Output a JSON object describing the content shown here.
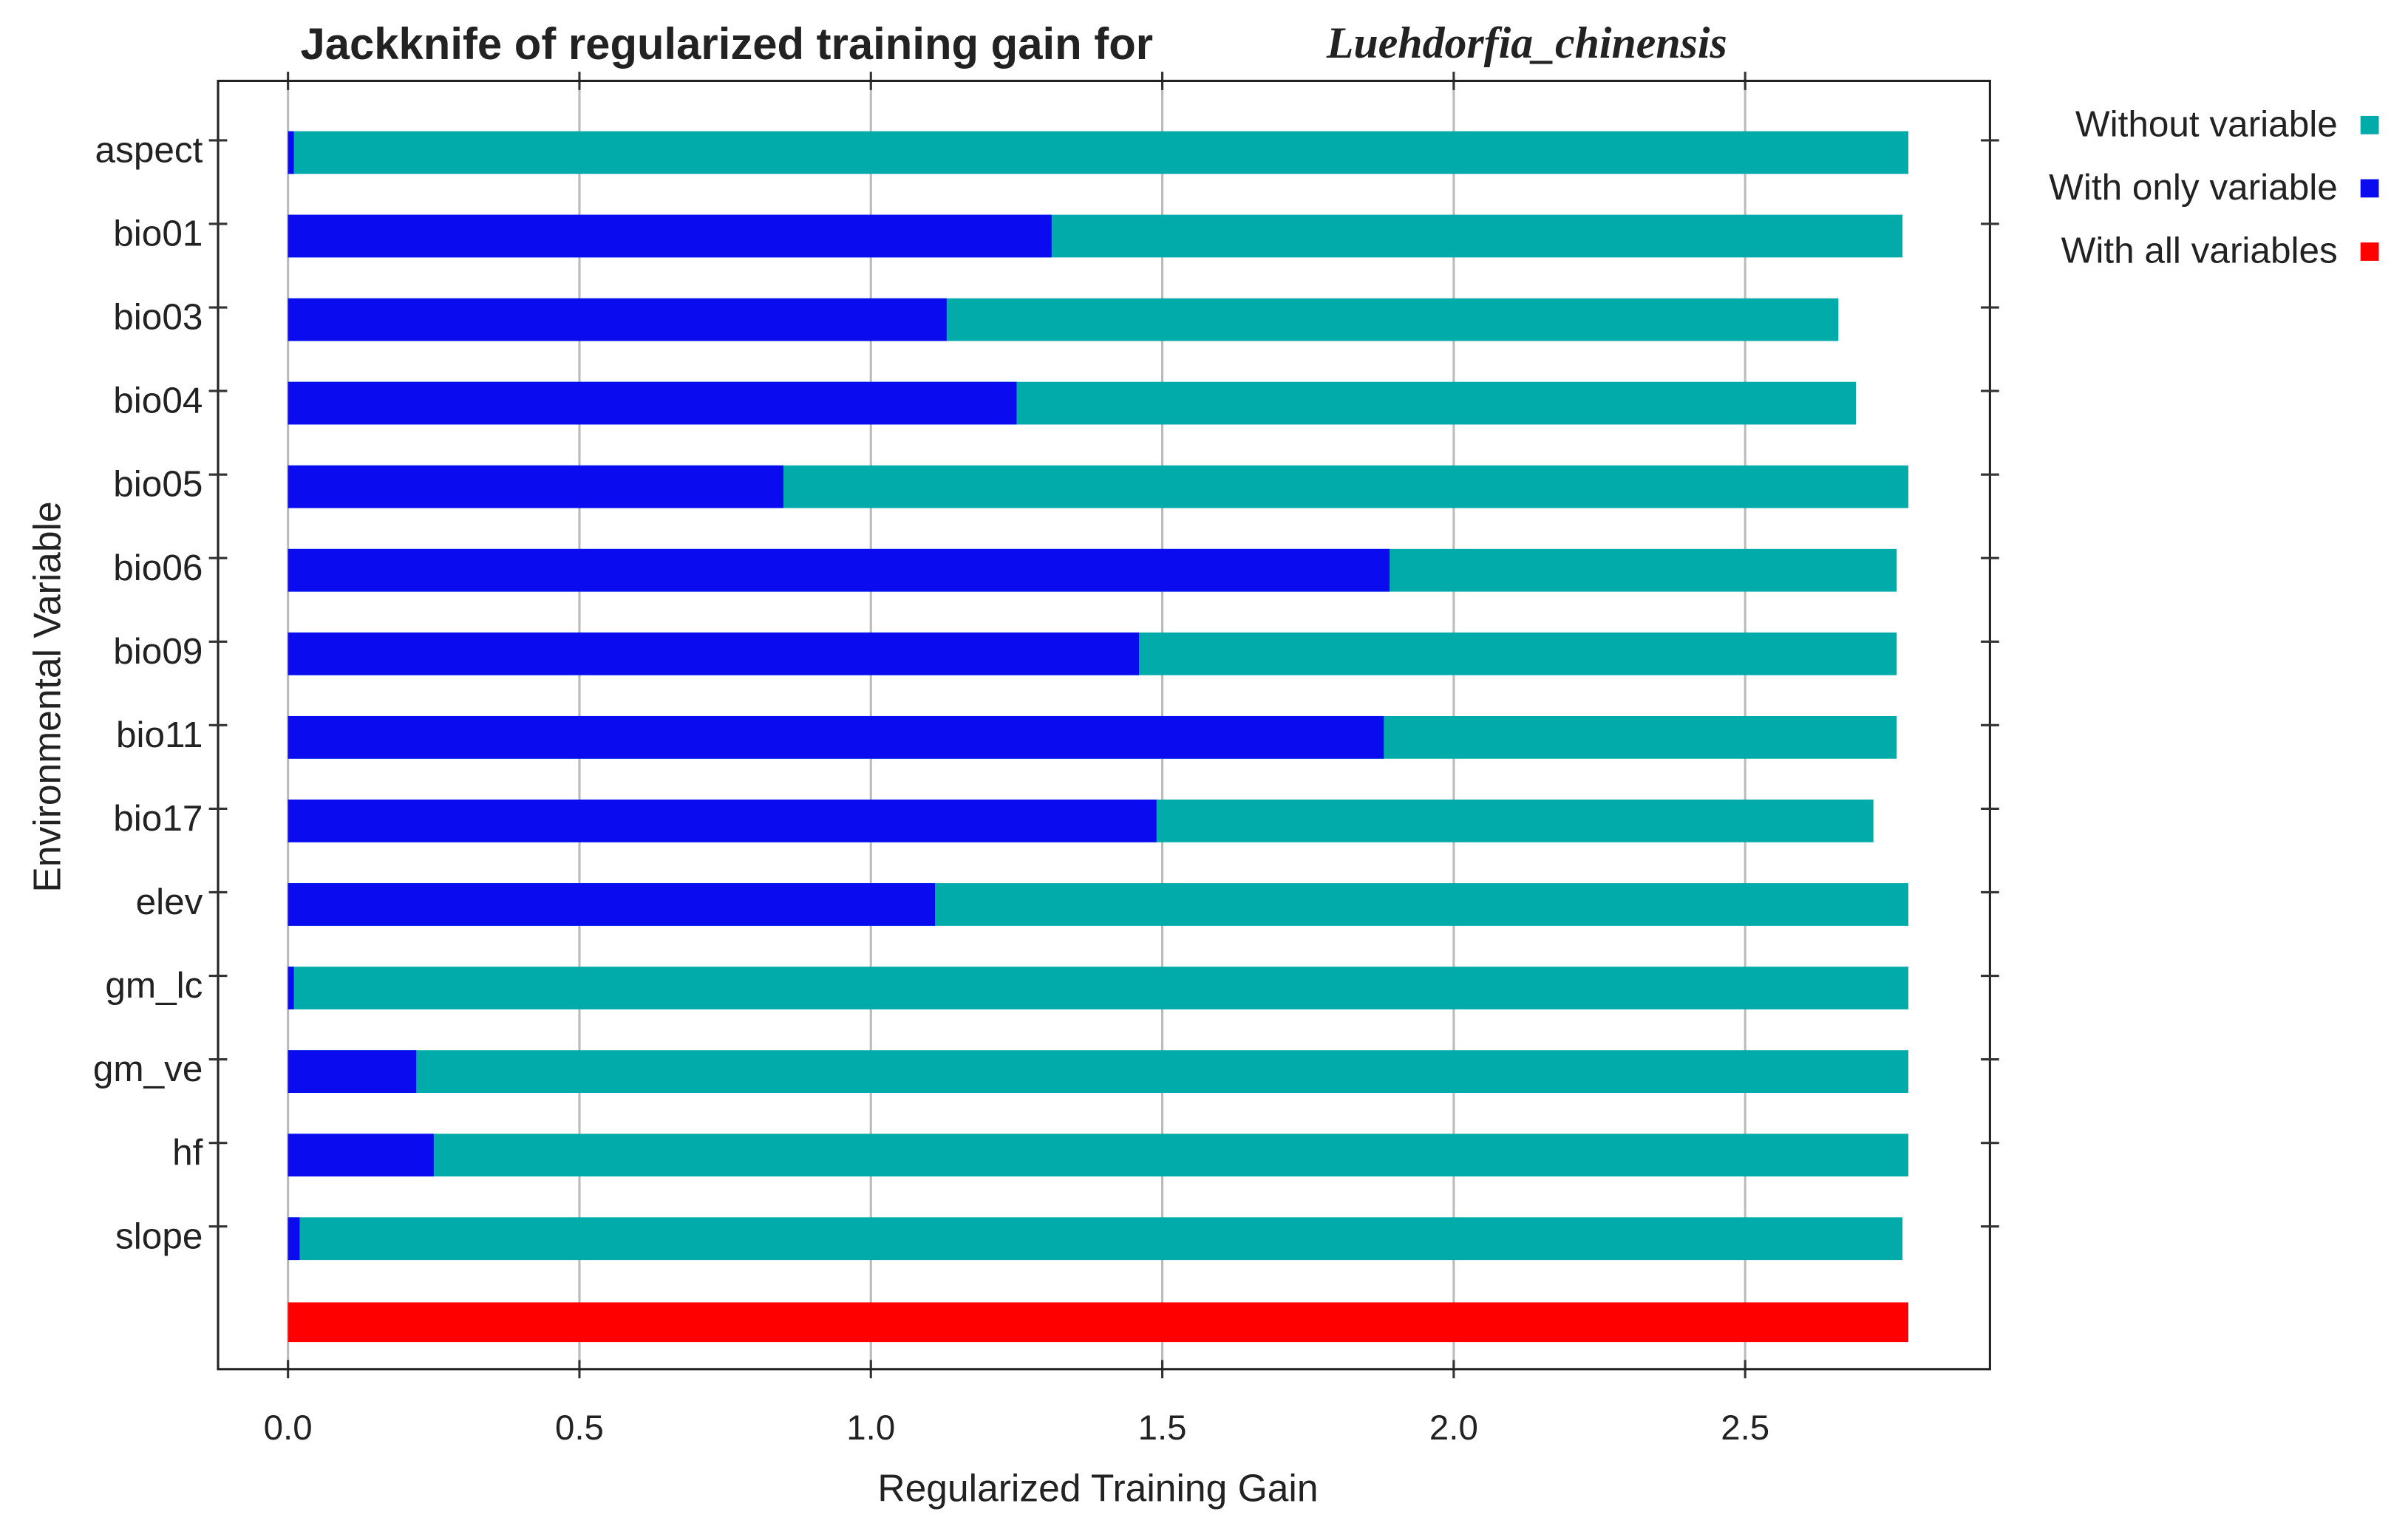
{
  "chart_data": {
    "type": "bar",
    "orientation": "horizontal",
    "title": "Jackknife of regularized training gain for",
    "species": "Luehdorfia_chinensis",
    "xlabel": "Regularized Training Gain",
    "ylabel": "Environmental Variable",
    "categories": [
      "aspect",
      "bio01",
      "bio03",
      "bio04",
      "bio05",
      "bio06",
      "bio09",
      "bio11",
      "bio17",
      "elev",
      "gm_lc",
      "gm_ve",
      "hf",
      "slope",
      null
    ],
    "series": [
      {
        "name": "Without variable",
        "color": "#00aba9",
        "values": [
          2.78,
          2.77,
          2.66,
          2.69,
          2.78,
          2.76,
          2.76,
          2.76,
          2.72,
          2.78,
          2.78,
          2.78,
          2.78,
          2.77,
          null
        ]
      },
      {
        "name": "With only variable",
        "color": "#0b0bf0",
        "values": [
          0.01,
          1.31,
          1.13,
          1.25,
          0.85,
          1.89,
          1.46,
          1.88,
          1.49,
          1.11,
          0.01,
          0.22,
          0.25,
          0.02,
          null
        ]
      },
      {
        "name": "With all variables",
        "color": "#ff0000",
        "values": [
          null,
          null,
          null,
          null,
          null,
          null,
          null,
          null,
          null,
          null,
          null,
          null,
          null,
          null,
          2.78
        ]
      }
    ],
    "xlim": [
      -0.12,
      2.92
    ],
    "xticks": [
      {
        "value": 0,
        "label": "0.0"
      },
      0.5,
      {
        "value": 1,
        "label": "1.0"
      },
      1.5,
      {
        "value": 2,
        "label": "2.0"
      },
      2.5
    ],
    "grid": true,
    "legend": "right"
  }
}
